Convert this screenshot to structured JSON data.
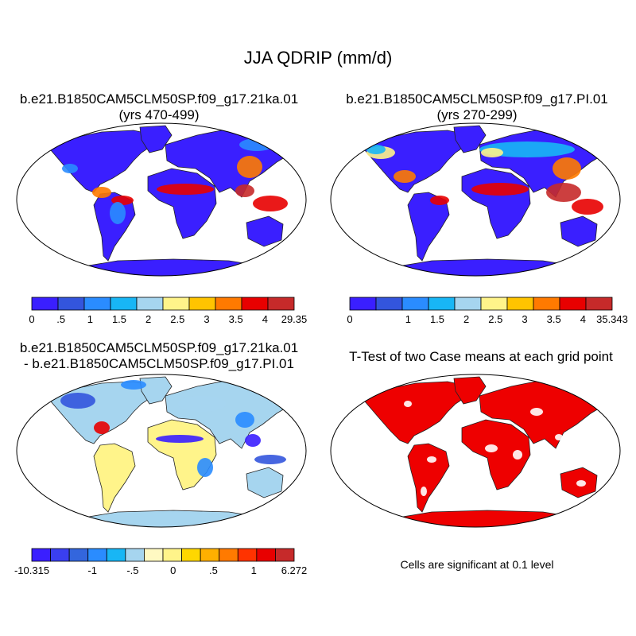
{
  "figure": {
    "title": "JJA QDRIP (mm/d)"
  },
  "chart_data": [
    {
      "type": "heatmap",
      "panel": "top-left",
      "title": "b.e21.B1850CAM5CLM50SP.f09_g17.21ka.01",
      "subtitle": "(yrs 470-499)",
      "projection": "robinson-world-map",
      "colorbar": {
        "levels": [
          "0",
          ".5",
          "1",
          "1.5",
          "2",
          "2.5",
          "3",
          "3.5",
          "4",
          "29.35"
        ],
        "colors": [
          "#3a1fff",
          "#3355dd",
          "#2a8cff",
          "#18b6f5",
          "#a6d5ef",
          "#fff48a",
          "#ffc400",
          "#ff7a00",
          "#e80000",
          "#c62a2a"
        ]
      }
    },
    {
      "type": "heatmap",
      "panel": "top-right",
      "title": "b.e21.B1850CAM5CLM50SP.f09_g17.PI.01",
      "subtitle": "(yrs 270-299)",
      "projection": "robinson-world-map",
      "colorbar": {
        "levels": [
          "0",
          "",
          "1",
          "1.5",
          "2",
          "2.5",
          "3",
          "3.5",
          "4",
          "35.343"
        ],
        "colors": [
          "#3a1fff",
          "#3355dd",
          "#2a8cff",
          "#18b6f5",
          "#a6d5ef",
          "#fff48a",
          "#ffc400",
          "#ff7a00",
          "#e80000",
          "#c62a2a"
        ]
      }
    },
    {
      "type": "heatmap",
      "panel": "bottom-left",
      "title": "b.e21.B1850CAM5CLM50SP.f09_g17.21ka.01",
      "subtitle": "- b.e21.B1850CAM5CLM50SP.f09_g17.PI.01",
      "projection": "robinson-world-map",
      "colorbar": {
        "levels": [
          "-10.315",
          "",
          "",
          "-1",
          "",
          "-.5",
          "",
          "0",
          "",
          ".5",
          "",
          "1",
          "",
          "6.272"
        ],
        "colors": [
          "#3a1fff",
          "#3a3ff0",
          "#3366dd",
          "#2a8cff",
          "#18b6f5",
          "#a6d5ef",
          "#fff9c2",
          "#fff48a",
          "#ffd700",
          "#ffb000",
          "#ff7a00",
          "#ff3300",
          "#e80000",
          "#c62a2a"
        ]
      }
    },
    {
      "type": "heatmap",
      "panel": "bottom-right",
      "title": "T-Test of two Case means at each grid point",
      "projection": "robinson-world-map",
      "note": "Cells are significant at 0.1 level",
      "colors": {
        "significant": "#ee0000"
      }
    }
  ]
}
